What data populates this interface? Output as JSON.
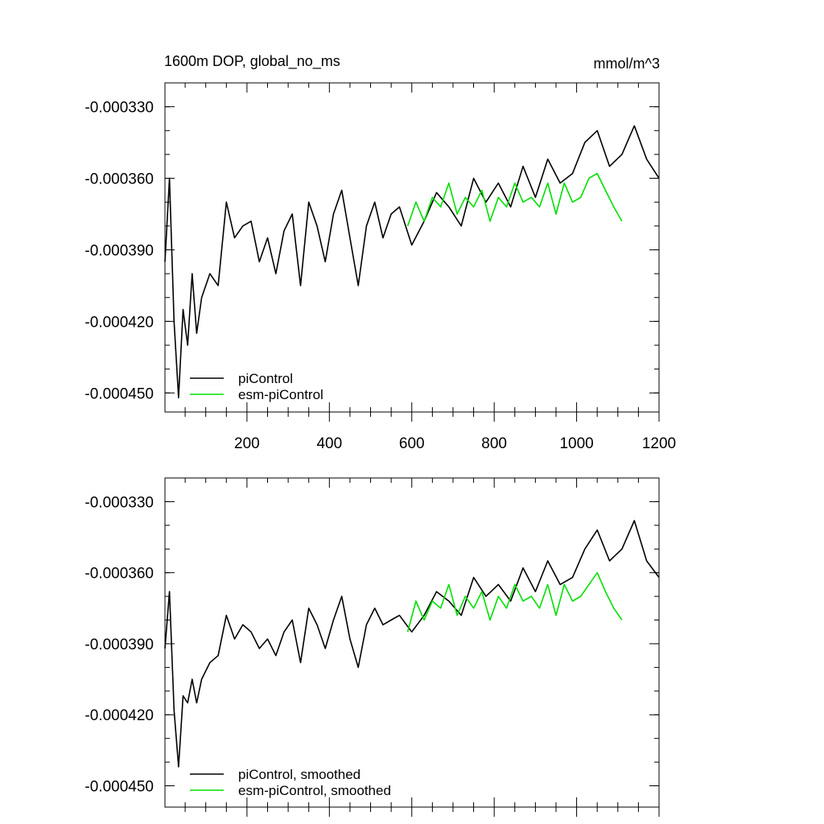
{
  "chart_data": [
    {
      "type": "line",
      "title": "1600m DOP, global_no_ms",
      "units": "mmol/m^3",
      "xlabel": "",
      "ylabel": "",
      "xlim": [
        1,
        1200
      ],
      "ylim": [
        -0.000458,
        -0.00032
      ],
      "x_ticks": [
        200,
        400,
        600,
        800,
        1000,
        1200
      ],
      "x_tick_labels": [
        "200",
        "400",
        "600",
        "800",
        "1000",
        "1200"
      ],
      "y_ticks": [
        -0.00033,
        -0.00036,
        -0.00039,
        -0.00042,
        -0.00045
      ],
      "y_tick_labels": [
        "-0.000330",
        "-0.000360",
        "-0.000390",
        "-0.000420",
        "-0.000450"
      ],
      "legend_position": "bottom-left",
      "series": [
        {
          "name": "piControl",
          "color": "#000000",
          "x": [
            1,
            12,
            23,
            34,
            45,
            56,
            67,
            78,
            90,
            110,
            130,
            150,
            170,
            190,
            210,
            230,
            250,
            270,
            290,
            310,
            330,
            350,
            370,
            390,
            410,
            430,
            450,
            470,
            490,
            510,
            530,
            550,
            570,
            600,
            630,
            660,
            690,
            720,
            750,
            780,
            810,
            840,
            870,
            900,
            930,
            960,
            990,
            1020,
            1050,
            1080,
            1110,
            1140,
            1170,
            1200
          ],
          "values": [
            -0.000395,
            -0.00036,
            -0.00042,
            -0.000452,
            -0.000415,
            -0.00043,
            -0.0004,
            -0.000425,
            -0.00041,
            -0.0004,
            -0.000405,
            -0.00037,
            -0.000385,
            -0.00038,
            -0.000378,
            -0.000395,
            -0.000385,
            -0.0004,
            -0.000382,
            -0.000375,
            -0.000405,
            -0.00037,
            -0.00038,
            -0.000395,
            -0.000375,
            -0.000365,
            -0.000385,
            -0.000405,
            -0.00038,
            -0.00037,
            -0.000385,
            -0.000375,
            -0.000372,
            -0.000388,
            -0.000378,
            -0.000366,
            -0.000372,
            -0.00038,
            -0.00036,
            -0.00037,
            -0.000362,
            -0.000372,
            -0.000355,
            -0.000368,
            -0.000352,
            -0.000362,
            -0.000358,
            -0.000345,
            -0.00034,
            -0.000355,
            -0.00035,
            -0.000338,
            -0.000352,
            -0.00036
          ]
        },
        {
          "name": "esm-piControl",
          "color": "#00e000",
          "x": [
            590,
            610,
            630,
            650,
            670,
            690,
            710,
            730,
            750,
            770,
            790,
            810,
            830,
            850,
            870,
            890,
            910,
            930,
            950,
            970,
            990,
            1010,
            1030,
            1050,
            1070,
            1090,
            1110
          ],
          "values": [
            -0.00038,
            -0.00037,
            -0.000378,
            -0.000368,
            -0.000372,
            -0.000362,
            -0.000375,
            -0.000368,
            -0.000372,
            -0.000365,
            -0.000378,
            -0.000368,
            -0.000372,
            -0.000362,
            -0.00037,
            -0.000368,
            -0.000372,
            -0.000362,
            -0.000375,
            -0.000362,
            -0.00037,
            -0.000368,
            -0.00036,
            -0.000358,
            -0.000365,
            -0.000372,
            -0.000378
          ]
        }
      ]
    },
    {
      "type": "line",
      "title": "",
      "xlabel": "",
      "ylabel": "",
      "xlim": [
        1,
        1200
      ],
      "ylim": [
        -0.000459,
        -0.00032
      ],
      "y_ticks": [
        -0.00033,
        -0.00036,
        -0.00039,
        -0.00042,
        -0.00045
      ],
      "y_tick_labels": [
        "-0.000330",
        "-0.000360",
        "-0.000390",
        "-0.000420",
        "-0.000450"
      ],
      "legend_position": "bottom-left",
      "series": [
        {
          "name": "piControl, smoothed",
          "color": "#000000",
          "x": [
            1,
            12,
            23,
            34,
            45,
            56,
            67,
            78,
            90,
            110,
            130,
            150,
            170,
            190,
            210,
            230,
            250,
            270,
            290,
            310,
            330,
            350,
            370,
            390,
            410,
            430,
            450,
            470,
            490,
            510,
            530,
            550,
            570,
            600,
            630,
            660,
            690,
            720,
            750,
            780,
            810,
            840,
            870,
            900,
            930,
            960,
            990,
            1020,
            1050,
            1080,
            1110,
            1140,
            1170,
            1200
          ],
          "values": [
            -0.000392,
            -0.000368,
            -0.000418,
            -0.000442,
            -0.000412,
            -0.000415,
            -0.000405,
            -0.000415,
            -0.000405,
            -0.000398,
            -0.000395,
            -0.000378,
            -0.000388,
            -0.000382,
            -0.000385,
            -0.000392,
            -0.000388,
            -0.000395,
            -0.000385,
            -0.00038,
            -0.000398,
            -0.000375,
            -0.000382,
            -0.000392,
            -0.00038,
            -0.00037,
            -0.000388,
            -0.0004,
            -0.000382,
            -0.000375,
            -0.000382,
            -0.00038,
            -0.000378,
            -0.000385,
            -0.000378,
            -0.000368,
            -0.000372,
            -0.000378,
            -0.000362,
            -0.00037,
            -0.000365,
            -0.000372,
            -0.000358,
            -0.000368,
            -0.000355,
            -0.000365,
            -0.000362,
            -0.00035,
            -0.000342,
            -0.000355,
            -0.00035,
            -0.000338,
            -0.000355,
            -0.000362
          ]
        },
        {
          "name": "esm-piControl, smoothed",
          "color": "#00e000",
          "x": [
            590,
            610,
            630,
            650,
            670,
            690,
            710,
            730,
            750,
            770,
            790,
            810,
            830,
            850,
            870,
            890,
            910,
            930,
            950,
            970,
            990,
            1010,
            1030,
            1050,
            1070,
            1090,
            1110
          ],
          "values": [
            -0.000385,
            -0.000372,
            -0.00038,
            -0.000372,
            -0.000375,
            -0.000365,
            -0.000378,
            -0.00037,
            -0.000375,
            -0.000368,
            -0.00038,
            -0.00037,
            -0.000375,
            -0.000365,
            -0.000372,
            -0.00037,
            -0.000375,
            -0.000365,
            -0.000378,
            -0.000365,
            -0.000372,
            -0.00037,
            -0.000365,
            -0.00036,
            -0.000368,
            -0.000375,
            -0.00038
          ]
        }
      ]
    }
  ]
}
